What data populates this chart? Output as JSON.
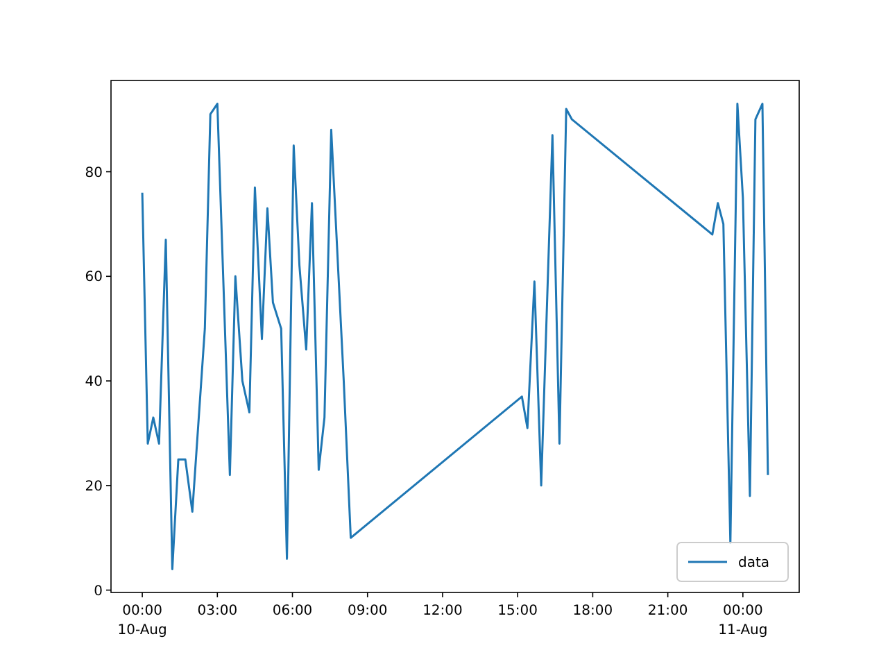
{
  "chart_data": {
    "type": "line",
    "x": [
      0,
      0.22,
      0.44,
      0.67,
      0.94,
      1.2,
      1.44,
      1.72,
      2.0,
      2.5,
      2.72,
      3.0,
      3.5,
      3.72,
      4.0,
      4.28,
      4.5,
      4.78,
      5.0,
      5.22,
      5.55,
      5.78,
      6.05,
      6.28,
      6.55,
      6.78,
      7.05,
      7.28,
      7.55,
      8.05,
      8.33,
      15.17,
      15.39,
      15.67,
      15.94,
      16.39,
      16.67,
      16.94,
      17.17,
      22.78,
      23.0,
      23.22,
      23.5,
      23.78,
      24.0,
      24.28,
      24.5,
      24.78,
      25.0
    ],
    "series": [
      {
        "name": "data",
        "color": "#1f77b4",
        "values": [
          76,
          28,
          33,
          28,
          67,
          4,
          25,
          25,
          15,
          50,
          91,
          93,
          22,
          60,
          40,
          34,
          77,
          48,
          73,
          55,
          50,
          6,
          85,
          62,
          46,
          74,
          23,
          33,
          88,
          40,
          10,
          37,
          31,
          59,
          20,
          87,
          28,
          92,
          90,
          68,
          74,
          70,
          9,
          93,
          75,
          18,
          90,
          93,
          22
        ]
      }
    ],
    "xlim": [
      -1.25,
      26.25
    ],
    "ylim": [
      -0.45,
      97.45
    ],
    "xticks": [
      {
        "value": 0,
        "label": "00:00\n10-Aug"
      },
      {
        "value": 3,
        "label": "03:00"
      },
      {
        "value": 6,
        "label": "06:00"
      },
      {
        "value": 9,
        "label": "09:00"
      },
      {
        "value": 12,
        "label": "12:00"
      },
      {
        "value": 15,
        "label": "15:00"
      },
      {
        "value": 18,
        "label": "18:00"
      },
      {
        "value": 21,
        "label": "21:00"
      },
      {
        "value": 24,
        "label": "00:00\n11-Aug"
      }
    ],
    "yticks": [
      0,
      20,
      40,
      60,
      80
    ],
    "legend": "bottom right",
    "grid": false
  }
}
